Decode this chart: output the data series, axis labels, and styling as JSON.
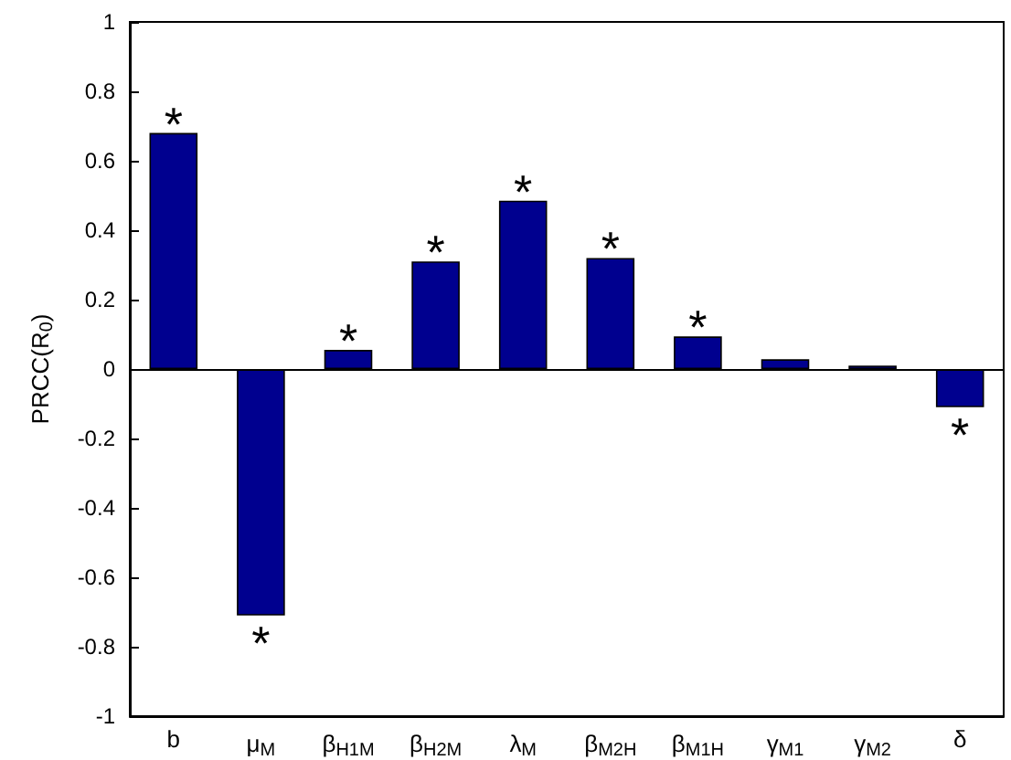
{
  "chart_data": {
    "type": "bar",
    "ylabel": "PRCC(R$_{0}$)",
    "categories": [
      "b",
      "μ$_{M}$",
      "β$_{H1M}$",
      "β$_{H2M}$",
      "λ$_{M}$",
      "β$_{M2H}$",
      "β$_{M1H}$",
      "γ$_{M1}$",
      "γ$_{M2}$",
      "δ"
    ],
    "values": [
      0.68,
      -0.71,
      0.055,
      0.31,
      0.485,
      0.32,
      0.094,
      0.028,
      0.01,
      -0.11
    ],
    "color": "#00008f",
    "ylim": [
      -1,
      1
    ],
    "yticks": [
      -1,
      -0.8,
      -0.6,
      -0.4,
      -0.2,
      0,
      0.2,
      0.4,
      0.6,
      0.8,
      1
    ],
    "grid": false,
    "ref_lines": [
      {
        "axis": "y",
        "value": 0,
        "color": "#000000"
      }
    ],
    "annotations": [
      {
        "text": "*",
        "x": "b",
        "y": 0.68
      },
      {
        "text": "*",
        "x": "μ$_{M}$",
        "y": -0.71
      },
      {
        "text": "*",
        "x": "β$_{H1M}$",
        "y": 0.055
      },
      {
        "text": "*",
        "x": "β$_{H2M}$",
        "y": 0.31
      },
      {
        "text": "*",
        "x": "λ$_{M}$",
        "y": 0.485
      },
      {
        "text": "*",
        "x": "β$_{M2H}$",
        "y": 0.32
      },
      {
        "text": "*",
        "x": "β$_{M1H}$",
        "y": 0.094
      },
      {
        "text": "*",
        "x": "δ",
        "y": -0.11
      }
    ]
  }
}
